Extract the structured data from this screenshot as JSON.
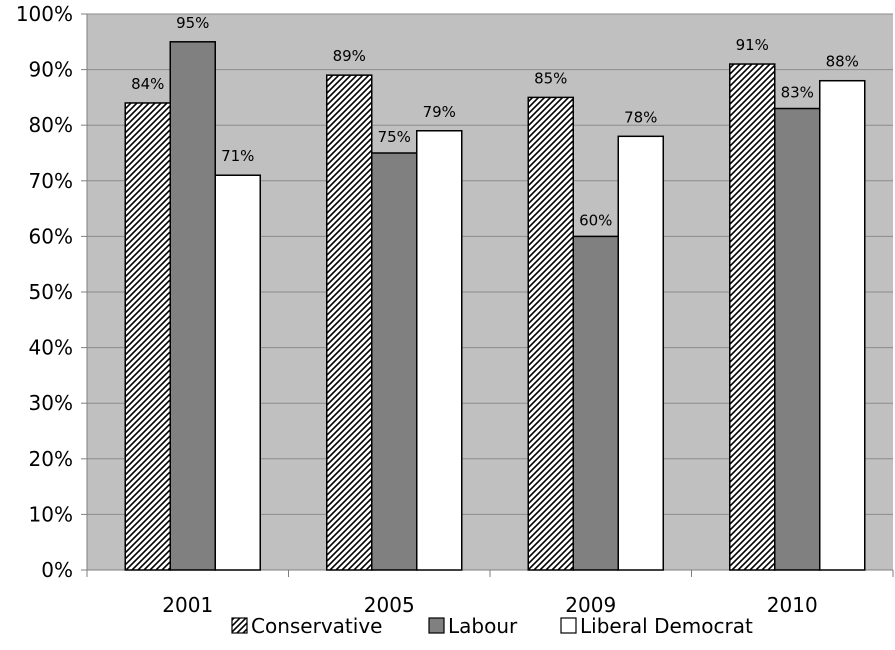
{
  "chart_data": {
    "type": "bar",
    "categories": [
      "2001",
      "2005",
      "2009",
      "2010"
    ],
    "series": [
      {
        "name": "Conservative",
        "values": [
          84,
          89,
          85,
          91
        ],
        "fill": "hatch"
      },
      {
        "name": "Labour",
        "values": [
          95,
          75,
          60,
          83
        ],
        "fill": "#808080"
      },
      {
        "name": "Liberal Democrat",
        "values": [
          71,
          79,
          78,
          88
        ],
        "fill": "#ffffff"
      }
    ],
    "data_labels": [
      [
        "84%",
        "89%",
        "85%",
        "91%"
      ],
      [
        "95%",
        "75%",
        "60%",
        "83%"
      ],
      [
        "71%",
        "79%",
        "78%",
        "88%"
      ]
    ],
    "y_ticks": [
      0,
      10,
      20,
      30,
      40,
      50,
      60,
      70,
      80,
      90,
      100
    ],
    "y_tick_labels": [
      "0%",
      "10%",
      "20%",
      "30%",
      "40%",
      "50%",
      "60%",
      "70%",
      "80%",
      "90%",
      "100%"
    ],
    "ylim": [
      0,
      100
    ],
    "title": "",
    "xlabel": "",
    "ylabel": "",
    "grid": true,
    "legend_position": "bottom",
    "colors": {
      "plot_background": "#c0c0c0",
      "gridline": "#8c8c8c",
      "bar_outline": "#000000",
      "labour": "#808080",
      "liberal_democrat": "#ffffff"
    }
  }
}
